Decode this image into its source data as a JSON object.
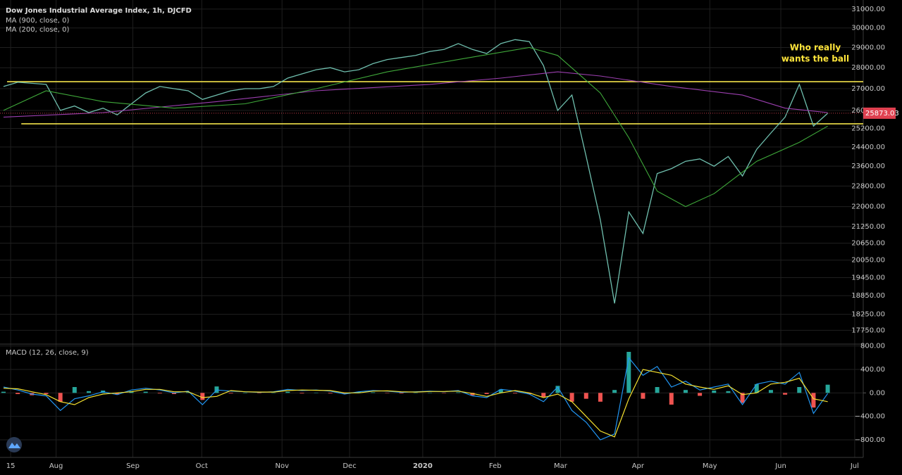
{
  "chart_data": [
    {
      "type": "line",
      "title": "Dow Jones Industrial Average Index, 1h, DJCFD",
      "log_y": true,
      "grid": true,
      "x": [
        0,
        2,
        4,
        6,
        8,
        10,
        12,
        14,
        16,
        18,
        20,
        22,
        24,
        26,
        28,
        30,
        32,
        34,
        36,
        38,
        40,
        42,
        44,
        46,
        48,
        50,
        52,
        54,
        56,
        58,
        60,
        62,
        64,
        66,
        68,
        70,
        72,
        74,
        76,
        78,
        80,
        82,
        84,
        86,
        88,
        90,
        92,
        94,
        96,
        98,
        100,
        102,
        104,
        106,
        108,
        110,
        112,
        114,
        116
      ],
      "xlim": [
        0,
        121
      ],
      "xticks": [
        {
          "value": 1.0,
          "label": "15"
        },
        {
          "value": 7.4,
          "label": "Aug"
        },
        {
          "value": 18.2,
          "label": "Sep"
        },
        {
          "value": 27.9,
          "label": "Oct"
        },
        {
          "value": 39.2,
          "label": "Nov"
        },
        {
          "value": 48.7,
          "label": "Dec"
        },
        {
          "value": 59.0,
          "label": "2020"
        },
        {
          "value": 69.2,
          "label": "Feb"
        },
        {
          "value": 78.4,
          "label": "Mar"
        },
        {
          "value": 89.3,
          "label": "Apr"
        },
        {
          "value": 99.4,
          "label": "May"
        },
        {
          "value": 109.4,
          "label": "Jun"
        },
        {
          "value": 119.8,
          "label": "Jul"
        }
      ],
      "ylim": [
        17350,
        31300
      ],
      "yticks": [
        {
          "value": 31000,
          "label": "31000.00"
        },
        {
          "value": 30000,
          "label": "30000.00"
        },
        {
          "value": 29000,
          "label": "29000.00"
        },
        {
          "value": 28000,
          "label": "28000.00"
        },
        {
          "value": 27000,
          "label": "27000.00"
        },
        {
          "value": 26000,
          "label": "26000.00"
        },
        {
          "value": 25200,
          "label": "25200.00"
        },
        {
          "value": 24400,
          "label": "24400.00"
        },
        {
          "value": 23600,
          "label": "23600.00"
        },
        {
          "value": 22800,
          "label": "22800.00"
        },
        {
          "value": 22000,
          "label": "22000.00"
        },
        {
          "value": 21250,
          "label": "21250.00"
        },
        {
          "value": 20650,
          "label": "20650.00"
        },
        {
          "value": 20050,
          "label": "20050.00"
        },
        {
          "value": 19450,
          "label": "19450.00"
        },
        {
          "value": 18850,
          "label": "18850.00"
        },
        {
          "value": 18250,
          "label": "18250.00"
        },
        {
          "value": 17750,
          "label": "17750.00"
        }
      ],
      "series": [
        {
          "color": "#6fbfae",
          "values": [
            27100,
            27300,
            27250,
            27200,
            26000,
            26200,
            25900,
            26100,
            25800,
            26300,
            26800,
            27100,
            27000,
            26900,
            26500,
            26700,
            26900,
            27000,
            27000,
            27100,
            27500,
            27700,
            27900,
            28000,
            27800,
            27900,
            28200,
            28400,
            28500,
            28600,
            28800,
            28900,
            29200,
            28900,
            28700,
            29200,
            29400,
            29300,
            28100,
            26000,
            26700,
            24000,
            21500,
            18600,
            21800,
            21000,
            23300,
            23500,
            23800,
            23900,
            23600,
            24000,
            23200,
            24300,
            25000,
            25700,
            27200,
            25300,
            25873.03
          ]
        },
        {
          "name": "MA (900, close, 0)",
          "color": "#9c3fb0",
          "x": [
            0,
            14,
            30,
            44,
            60,
            70,
            78,
            84,
            94,
            104,
            110,
            116
          ],
          "values": [
            25700,
            25900,
            26400,
            26900,
            27200,
            27500,
            27800,
            27600,
            27100,
            26700,
            26100,
            25900
          ]
        },
        {
          "name": "MA (200, close, 0)",
          "color": "#3fa83a",
          "x": [
            0,
            6,
            14,
            24,
            34,
            44,
            54,
            64,
            74,
            78,
            84,
            88,
            92,
            96,
            100,
            106,
            112,
            116
          ],
          "values": [
            26000,
            26900,
            26400,
            26100,
            26300,
            27000,
            27800,
            28400,
            29000,
            28600,
            26800,
            24800,
            22600,
            22000,
            22500,
            23800,
            24600,
            25300
          ]
        }
      ],
      "hlines": [
        {
          "value": 27330,
          "color": "#f2e34a",
          "x0": 0.5
        },
        {
          "value": 25400,
          "color": "#f2e34a",
          "x0": 2.5
        }
      ],
      "annotation": [
        "Who really",
        "wants the ball"
      ],
      "annotation_color": "#ffe53b"
    },
    {
      "type": "macd",
      "title": "MACD (12, 26, close, 9)",
      "x": [
        0,
        2,
        4,
        6,
        8,
        10,
        12,
        14,
        16,
        18,
        20,
        22,
        24,
        26,
        28,
        30,
        32,
        34,
        36,
        38,
        40,
        42,
        44,
        46,
        48,
        50,
        52,
        54,
        56,
        58,
        60,
        62,
        64,
        66,
        68,
        70,
        72,
        74,
        76,
        78,
        80,
        82,
        84,
        86,
        88,
        90,
        92,
        94,
        96,
        98,
        100,
        102,
        104,
        106,
        108,
        110,
        112,
        114,
        116
      ],
      "xlim": [
        0,
        121
      ],
      "ylim": [
        -1100,
        820
      ],
      "yticks": [
        {
          "value": 800,
          "label": "800.00"
        },
        {
          "value": 400,
          "label": "400.00"
        },
        {
          "value": 0,
          "label": "0.00"
        },
        {
          "value": -400,
          "label": "−400.00"
        },
        {
          "value": -800,
          "label": "−800.00"
        }
      ],
      "histogram": {
        "up_color": "#26a69a",
        "down_color": "#ef5350",
        "values": [
          20,
          -20,
          -40,
          -20,
          -150,
          100,
          30,
          40,
          -30,
          30,
          20,
          -10,
          -20,
          10,
          -120,
          110,
          -10,
          0,
          -5,
          5,
          20,
          -10,
          5,
          -10,
          -20,
          20,
          10,
          -5,
          -10,
          5,
          5,
          -5,
          10,
          -40,
          -20,
          60,
          -10,
          -20,
          -70,
          120,
          -150,
          -100,
          -150,
          50,
          700,
          -100,
          100,
          -200,
          50,
          -50,
          40,
          30,
          -170,
          150,
          50,
          -30,
          100,
          -250,
          140
        ]
      },
      "series": [
        {
          "color": "#2196f3",
          "values": [
            100,
            50,
            -20,
            -50,
            -300,
            -100,
            -50,
            20,
            -30,
            50,
            80,
            50,
            0,
            30,
            -200,
            50,
            30,
            20,
            10,
            20,
            60,
            40,
            50,
            30,
            -20,
            20,
            40,
            30,
            10,
            20,
            30,
            20,
            40,
            -50,
            -80,
            60,
            30,
            -20,
            -150,
            100,
            -300,
            -500,
            -800,
            -700,
            600,
            300,
            450,
            100,
            200,
            50,
            100,
            150,
            -200,
            150,
            200,
            150,
            350,
            -350,
            -10
          ]
        },
        {
          "color": "#f5e12f",
          "values": [
            80,
            70,
            20,
            -30,
            -150,
            -200,
            -80,
            -20,
            0,
            20,
            60,
            60,
            20,
            20,
            -80,
            -60,
            40,
            20,
            15,
            15,
            40,
            50,
            45,
            40,
            0,
            0,
            30,
            35,
            20,
            15,
            25,
            25,
            30,
            -10,
            -60,
            0,
            40,
            0,
            -80,
            -20,
            -150,
            -400,
            -650,
            -750,
            -100,
            400,
            350,
            300,
            150,
            100,
            60,
            120,
            -30,
            0,
            150,
            180,
            250,
            -100,
            -150
          ]
        }
      ]
    }
  ]
}
